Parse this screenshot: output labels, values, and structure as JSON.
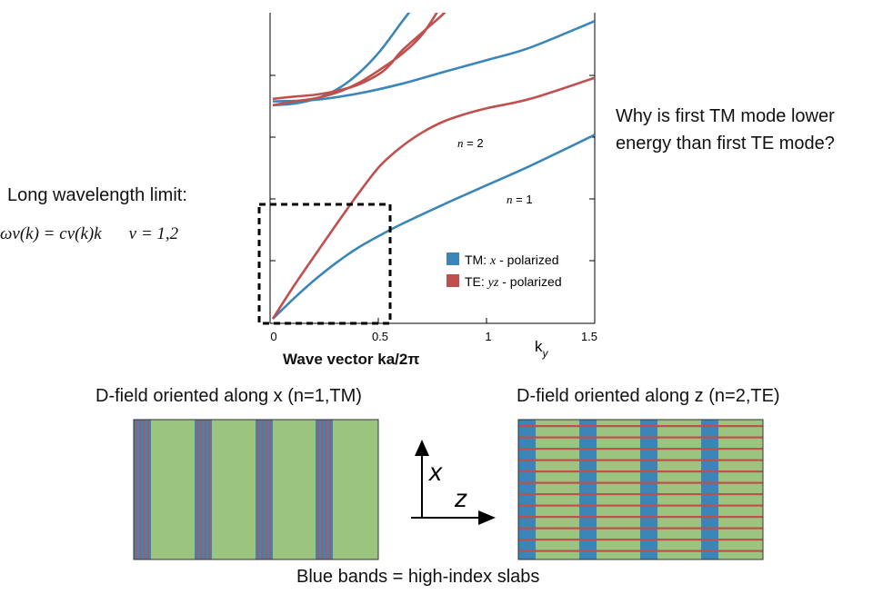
{
  "chart_data": {
    "type": "line",
    "title": "",
    "xlabel": "Wave vector  ka/2π",
    "xlabel_alt": "k",
    "xlabel_alt_sub": "y",
    "ylabel": "",
    "xlim": [
      0,
      1.5
    ],
    "ylim": [
      0,
      1
    ],
    "xticks": [
      "0",
      "0.5",
      "1",
      "1.5"
    ],
    "legend_position": "bottom-right",
    "series": [
      {
        "name": "TM: x - polarized",
        "color": "#3b86b8",
        "band": 1,
        "x": [
          0,
          0.1,
          0.2,
          0.3,
          0.4,
          0.5,
          0.6,
          0.8,
          1.0,
          1.2,
          1.5
        ],
        "y": [
          0,
          0.065,
          0.125,
          0.178,
          0.224,
          0.262,
          0.297,
          0.36,
          0.42,
          0.48,
          0.577
        ]
      },
      {
        "name": "TE: yz - polarized",
        "color": "#c0504d",
        "band": 1,
        "x": [
          0,
          0.1,
          0.2,
          0.3,
          0.4,
          0.5,
          0.6,
          0.7,
          0.8,
          0.9,
          1.0,
          1.2,
          1.5
        ],
        "y": [
          0,
          0.105,
          0.203,
          0.3,
          0.394,
          0.48,
          0.54,
          0.586,
          0.62,
          0.643,
          0.661,
          0.69,
          0.756
        ]
      },
      {
        "name": "TM: x - polarized",
        "color": "#3b86b8",
        "band": 2,
        "x": [
          0,
          0.2,
          0.4,
          0.6,
          0.8,
          1.0,
          1.2,
          1.5
        ],
        "y": [
          0.682,
          0.687,
          0.707,
          0.737,
          0.775,
          0.812,
          0.851,
          0.934
        ]
      },
      {
        "name": "TM: x - polarized",
        "color": "#3b86b8",
        "band": 3,
        "x": [
          0,
          0.1,
          0.2,
          0.3,
          0.4,
          0.5,
          0.6,
          0.68
        ],
        "y": [
          0.67,
          0.675,
          0.69,
          0.72,
          0.77,
          0.84,
          0.93,
          1.0
        ]
      },
      {
        "name": "TE: yz - polarized",
        "color": "#c0504d",
        "band": 2,
        "x": [
          0,
          0.1,
          0.2,
          0.3,
          0.4,
          0.5,
          0.6,
          0.7,
          0.8
        ],
        "y": [
          0.67,
          0.682,
          0.692,
          0.71,
          0.74,
          0.782,
          0.83,
          0.895,
          1.0
        ]
      },
      {
        "name": "TE: yz - polarized",
        "color": "#c0504d",
        "band": 3,
        "x": [
          0,
          0.1,
          0.2,
          0.3,
          0.4,
          0.5,
          0.55,
          0.6,
          0.7,
          0.8,
          0.85
        ],
        "y": [
          0.69,
          0.697,
          0.703,
          0.715,
          0.735,
          0.77,
          0.8,
          0.84,
          0.9,
          0.96,
          1.0
        ]
      }
    ],
    "annotations": [
      {
        "text_italic": "n",
        "text": " = 2"
      },
      {
        "text_italic": "n",
        "text": " = 1"
      }
    ]
  },
  "legend": {
    "tm_name": "TM: ",
    "tm_var": "x",
    "tm_rest": " - polarized",
    "te_name": "TE: ",
    "te_var": "yz",
    "te_rest": " - polarized"
  },
  "text": {
    "question_line1": "Why is first TM mode lower",
    "question_line2": "energy than first TE mode?",
    "long_wavelength": "Long wavelength limit:",
    "formula": "ων(k) = cν(k)k",
    "formula_nu": "ν = 1,2",
    "caption_left": "D-field oriented along x (n=1,TM)",
    "caption_right": "D-field oriented along z (n=2,TE)",
    "axis_x": "x",
    "axis_z": "z",
    "bottom_caption": "Blue bands = high-index slabs"
  },
  "colors": {
    "tm_blue": "#3b86b8",
    "te_red": "#c0504d",
    "slab_green": "#9bc47e"
  }
}
